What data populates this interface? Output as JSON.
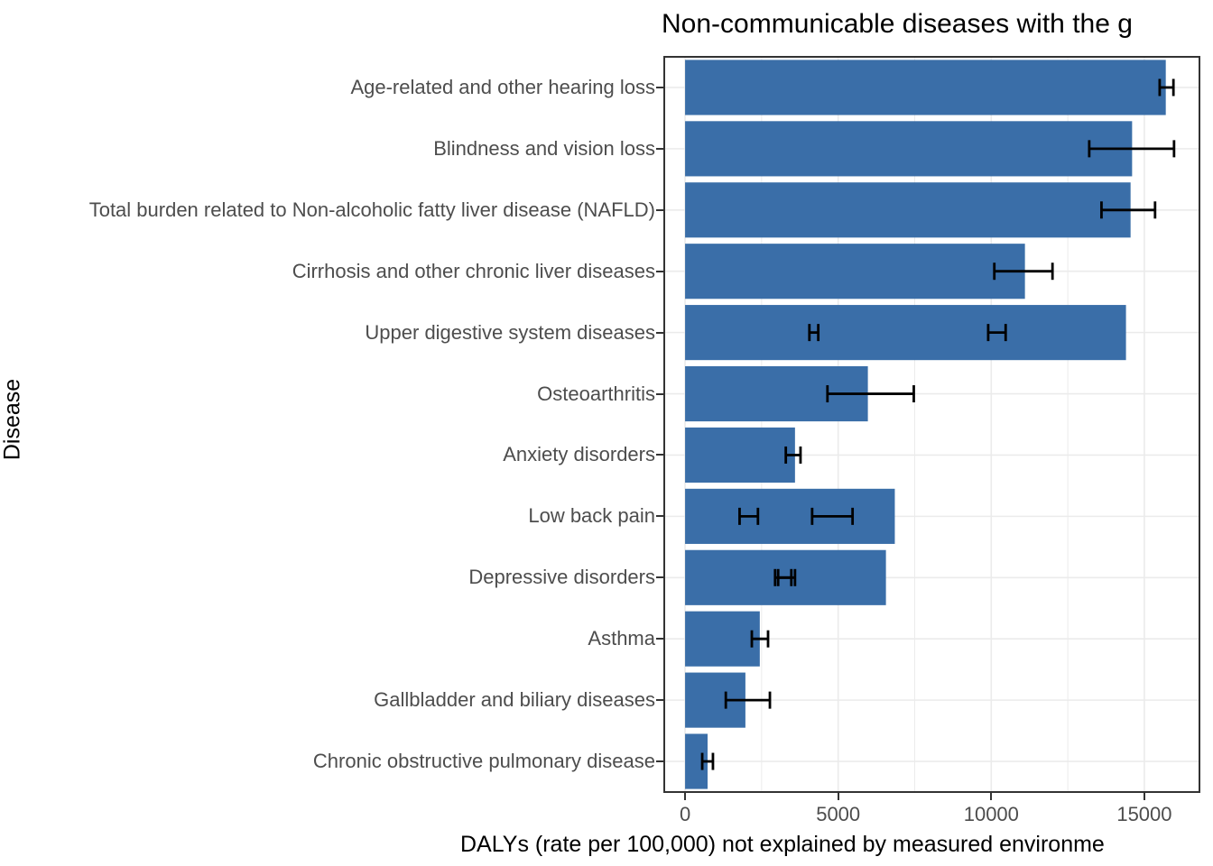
{
  "colors": {
    "bar": "#3A6EA8",
    "grid": "#EBEBEB",
    "panel_border": "#333333",
    "axis_text": "#4D4D4D",
    "title_text": "#000000",
    "error_bar": "#000000",
    "background": "#FFFFFF"
  },
  "chart_data": {
    "type": "bar",
    "orientation": "horizontal",
    "title": "Non-communicable diseases with the g",
    "xlabel": "DALYs (rate per 100,000) not explained by measured environme",
    "ylabel": "Disease",
    "x_ticks": [
      0,
      5000,
      10000,
      15000
    ],
    "x_minor_gridlines": [
      2500,
      7500,
      12500
    ],
    "x_domain": [
      -680,
      16800
    ],
    "grid": "light gray vertical major+minor, horizontal major at category centers",
    "legend": "none",
    "categories": [
      "Age-related and other hearing loss",
      "Blindness and vision loss",
      "Total burden related to Non-alcoholic fatty liver disease (NAFLD)",
      "Cirrhosis and other chronic liver diseases",
      "Upper digestive system diseases",
      "Osteoarthritis",
      "Anxiety disorders",
      "Low back pain",
      "Depressive disorders",
      "Asthma",
      "Gallbladder and biliary diseases",
      "Chronic obstructive pulmonary disease"
    ],
    "values": [
      15700,
      14600,
      14550,
      11100,
      14400,
      5970,
      3590,
      6850,
      6560,
      2440,
      1970,
      735
    ],
    "error_bars": [
      [
        [
          15500,
          15950
        ]
      ],
      [
        [
          13200,
          15970
        ]
      ],
      [
        [
          13600,
          15350
        ]
      ],
      [
        [
          10100,
          12000
        ]
      ],
      [
        [
          4060,
          4350
        ],
        [
          9900,
          10470
        ]
      ],
      [
        [
          4650,
          7470
        ]
      ],
      [
        [
          3290,
          3770
        ]
      ],
      [
        [
          1780,
          2380
        ],
        [
          4150,
          5470
        ]
      ],
      [
        [
          2940,
          3470
        ],
        [
          3040,
          3590
        ]
      ],
      [
        [
          2180,
          2710
        ]
      ],
      [
        [
          1330,
          2770
        ]
      ],
      [
        [
          560,
          910
        ]
      ]
    ]
  }
}
